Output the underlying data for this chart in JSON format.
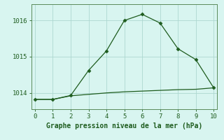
{
  "line1_x": [
    0,
    1,
    2,
    3,
    4,
    5,
    6,
    7,
    8,
    9,
    10
  ],
  "line1_y": [
    1013.82,
    1013.82,
    1013.93,
    1014.62,
    1015.16,
    1016.0,
    1016.17,
    1015.93,
    1015.22,
    1014.92,
    1014.14
  ],
  "line2_x": [
    0,
    1,
    2,
    3,
    4,
    5,
    6,
    7,
    8,
    9,
    10
  ],
  "line2_y": [
    1013.82,
    1013.82,
    1013.92,
    1013.96,
    1014.0,
    1014.03,
    1014.05,
    1014.07,
    1014.09,
    1014.1,
    1014.14
  ],
  "line_color": "#1e5c1e",
  "marker": "D",
  "marker_size": 2.5,
  "bg_color": "#d8f5f0",
  "grid_color": "#aed8d0",
  "xlabel": "Graphe pression niveau de la mer (hPa)",
  "xlim": [
    -0.2,
    10.2
  ],
  "ylim": [
    1013.55,
    1016.45
  ],
  "yticks": [
    1014,
    1015,
    1016
  ],
  "xticks": [
    0,
    1,
    2,
    3,
    4,
    5,
    6,
    7,
    8,
    9,
    10
  ],
  "xlabel_color": "#1e5c1e",
  "xlabel_fontsize": 7,
  "tick_fontsize": 6.5,
  "tick_color": "#1e5c1e",
  "spine_color": "#5a8a5a",
  "linewidth": 0.9
}
